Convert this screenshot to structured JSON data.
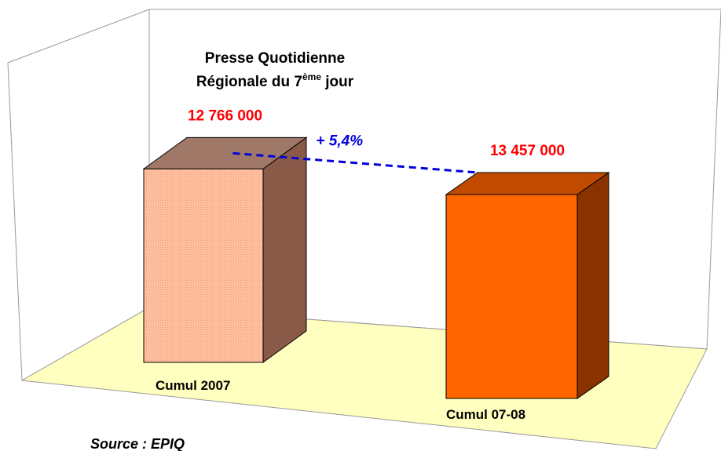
{
  "chart_data": {
    "type": "bar3d",
    "title": [
      "Presse Quotidienne",
      [
        "Régionale du 7",
        "ème",
        " jour"
      ]
    ],
    "categories": [
      "Cumul 2007",
      "Cumul 07-08"
    ],
    "values": [
      12766000,
      13457000
    ],
    "value_labels": [
      "12 766 000",
      "13 457 000"
    ],
    "colors": [
      "#ffbf9f",
      "#ff6600"
    ],
    "annotation": "+ 5,4%",
    "source": "Source : EPIQ"
  }
}
